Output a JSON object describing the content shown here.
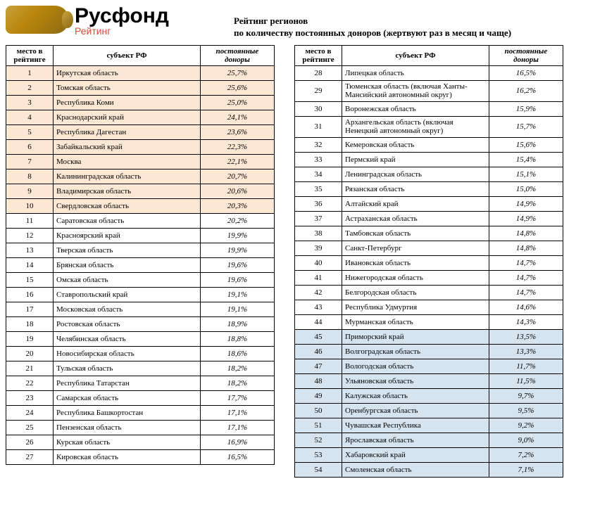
{
  "brand": {
    "name": "Русфонд",
    "sub": "Рейтинг"
  },
  "title_line1": "Рейтинг регионов",
  "title_line2": "по количеству постоянных доноров (жертвуют раз в месяц и чаще)",
  "columns": {
    "rank": "место в рейтинге",
    "region": "субъект РФ",
    "donors": "постоянные доноры"
  },
  "table_left": [
    {
      "rank": 1,
      "region": "Иркутская область",
      "donors": "25,7%",
      "hl": "orange"
    },
    {
      "rank": 2,
      "region": "Томская область",
      "donors": "25,6%",
      "hl": "orange"
    },
    {
      "rank": 3,
      "region": "Республика Коми",
      "donors": "25,0%",
      "hl": "orange"
    },
    {
      "rank": 4,
      "region": "Краснодарский край",
      "donors": "24,1%",
      "hl": "orange"
    },
    {
      "rank": 5,
      "region": "Республика Дагестан",
      "donors": "23,6%",
      "hl": "orange"
    },
    {
      "rank": 6,
      "region": "Забайкальский край",
      "donors": "22,3%",
      "hl": "orange"
    },
    {
      "rank": 7,
      "region": "Москва",
      "donors": "22,1%",
      "hl": "orange"
    },
    {
      "rank": 8,
      "region": "Калининградская область",
      "donors": "20,7%",
      "hl": "orange"
    },
    {
      "rank": 9,
      "region": "Владимирская область",
      "donors": "20,6%",
      "hl": "orange"
    },
    {
      "rank": 10,
      "region": "Свердловская область",
      "donors": "20,3%",
      "hl": "orange"
    },
    {
      "rank": 11,
      "region": "Саратовская область",
      "donors": "20,2%"
    },
    {
      "rank": 12,
      "region": "Красноярский край",
      "donors": "19,9%"
    },
    {
      "rank": 13,
      "region": "Тверская область",
      "donors": "19,9%"
    },
    {
      "rank": 14,
      "region": "Брянская область",
      "donors": "19,6%"
    },
    {
      "rank": 15,
      "region": "Омская область",
      "donors": "19,6%"
    },
    {
      "rank": 16,
      "region": "Ставропольский край",
      "donors": "19,1%"
    },
    {
      "rank": 17,
      "region": "Московская область",
      "donors": "19,1%"
    },
    {
      "rank": 18,
      "region": "Ростовская область",
      "donors": "18,9%"
    },
    {
      "rank": 19,
      "region": "Челябинская область",
      "donors": "18,8%"
    },
    {
      "rank": 20,
      "region": "Новосибирская область",
      "donors": "18,6%"
    },
    {
      "rank": 21,
      "region": "Тульская область",
      "donors": "18,2%"
    },
    {
      "rank": 22,
      "region": "Республика Татарстан",
      "donors": "18,2%"
    },
    {
      "rank": 23,
      "region": "Самарская область",
      "donors": "17,7%"
    },
    {
      "rank": 24,
      "region": "Республика Башкортостан",
      "donors": "17,1%"
    },
    {
      "rank": 25,
      "region": "Пензенская область",
      "donors": "17,1%"
    },
    {
      "rank": 26,
      "region": "Курская область",
      "donors": "16,9%"
    },
    {
      "rank": 27,
      "region": "Кировская область",
      "donors": "16,5%"
    }
  ],
  "table_right": [
    {
      "rank": 28,
      "region": "Липецкая область",
      "donors": "16,5%"
    },
    {
      "rank": 29,
      "region": "Тюменская область (включая Ханты-Мансийский автономный округ)",
      "donors": "16,2%",
      "tall": true
    },
    {
      "rank": 30,
      "region": "Воронежская область",
      "donors": "15,9%"
    },
    {
      "rank": 31,
      "region": "Архангельская область (включая Ненецкий автономный округ)",
      "donors": "15,7%",
      "tall": true
    },
    {
      "rank": 32,
      "region": "Кемеровская область",
      "donors": "15,6%"
    },
    {
      "rank": 33,
      "region": "Пермский край",
      "donors": "15,4%"
    },
    {
      "rank": 34,
      "region": "Ленинградская область",
      "donors": "15,1%"
    },
    {
      "rank": 35,
      "region": "Рязанская область",
      "donors": "15,0%"
    },
    {
      "rank": 36,
      "region": "Алтайский край",
      "donors": "14,9%"
    },
    {
      "rank": 37,
      "region": "Астраханская область",
      "donors": "14,9%"
    },
    {
      "rank": 38,
      "region": "Тамбовская область",
      "donors": "14,8%"
    },
    {
      "rank": 39,
      "region": "Санкт-Петербург",
      "donors": "14,8%"
    },
    {
      "rank": 40,
      "region": "Ивановская область",
      "donors": "14,7%"
    },
    {
      "rank": 41,
      "region": "Нижегородская область",
      "donors": "14,7%"
    },
    {
      "rank": 42,
      "region": "Белгородская область",
      "donors": "14,7%"
    },
    {
      "rank": 43,
      "region": "Республика Удмуртия",
      "donors": "14,6%"
    },
    {
      "rank": 44,
      "region": "Мурманская область",
      "donors": "14,3%"
    },
    {
      "rank": 45,
      "region": "Приморский край",
      "donors": "13,5%",
      "hl": "blue"
    },
    {
      "rank": 46,
      "region": "Волгоградская область",
      "donors": "13,3%",
      "hl": "blue"
    },
    {
      "rank": 47,
      "region": "Вологодская область",
      "donors": "11,7%",
      "hl": "blue"
    },
    {
      "rank": 48,
      "region": "Ульяновская область",
      "donors": "11,5%",
      "hl": "blue"
    },
    {
      "rank": 49,
      "region": "Калужская область",
      "donors": "9,7%",
      "hl": "blue"
    },
    {
      "rank": 50,
      "region": "Оренбургская область",
      "donors": "9,5%",
      "hl": "blue"
    },
    {
      "rank": 51,
      "region": "Чувашская Республика",
      "donors": "9,2%",
      "hl": "blue"
    },
    {
      "rank": 52,
      "region": "Ярославская область",
      "donors": "9,0%",
      "hl": "blue"
    },
    {
      "rank": 53,
      "region": "Хабаровский край",
      "donors": "7,2%",
      "hl": "blue"
    },
    {
      "rank": 54,
      "region": "Смоленская область",
      "donors": "7,1%",
      "hl": "blue"
    }
  ]
}
